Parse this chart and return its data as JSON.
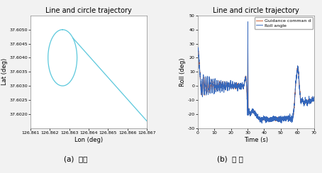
{
  "title_left": "Line and circle trajectory",
  "title_right": "Line and circle trajectory",
  "left_xlabel": "Lon (deg)",
  "left_ylabel": "Lat (deg)",
  "right_xlabel": "Time (s)",
  "right_ylabel": "Roll (deg)",
  "left_xlim": [
    126.861,
    126.867
  ],
  "left_ylim": [
    37.6015,
    37.6055
  ],
  "right_xlim": [
    0,
    70
  ],
  "right_ylim": [
    -30,
    50
  ],
  "left_xticks": [
    126.861,
    126.862,
    126.863,
    126.864,
    126.865,
    126.866,
    126.867
  ],
  "left_yticks": [
    37.602,
    37.6025,
    37.603,
    37.6035,
    37.604,
    37.6045,
    37.605
  ],
  "right_xticks": [
    0,
    10,
    20,
    30,
    40,
    50,
    60,
    70
  ],
  "right_yticks": [
    -30,
    -20,
    -10,
    0,
    10,
    20,
    30,
    40,
    50
  ],
  "caption_left": "(a)  경로",
  "caption_right": "(b)  롤 각",
  "line_color_left": "#5bc8dc",
  "line_color_roll": "#3366bb",
  "line_color_guidance": "#cc5522",
  "legend_roll": "Roll angle",
  "legend_guidance": "Guidance comman d",
  "bg_color": "#f2f2f2",
  "axes_bg": "#ffffff"
}
